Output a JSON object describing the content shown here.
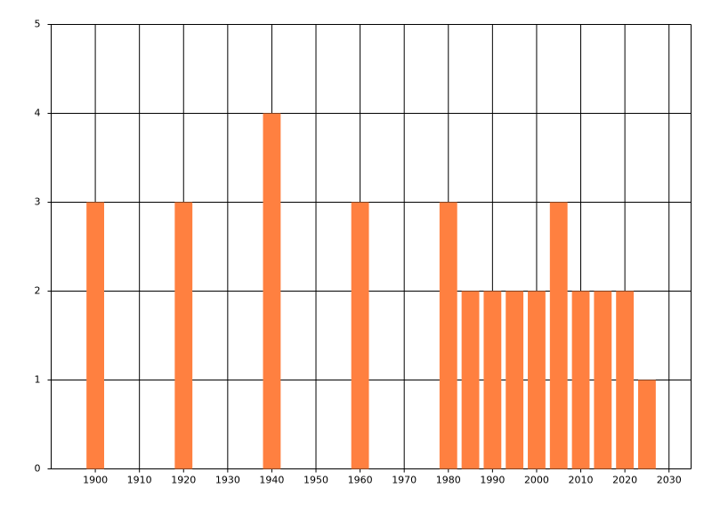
{
  "chart_data": {
    "type": "bar",
    "x": [
      1900,
      1920,
      1940,
      1960,
      1980,
      1985,
      1990,
      1995,
      2000,
      2005,
      2010,
      2015,
      2020,
      2025
    ],
    "values": [
      3,
      3,
      4,
      3,
      3,
      2,
      2,
      2,
      2,
      3,
      2,
      2,
      2,
      1
    ],
    "color": "#ff8040",
    "xlim": [
      1890,
      2035
    ],
    "xticks": [
      1900,
      1910,
      1920,
      1930,
      1940,
      1950,
      1960,
      1970,
      1980,
      1990,
      2000,
      2010,
      2020,
      2030
    ],
    "ylim": [
      0,
      5
    ],
    "yticks": [
      0,
      1,
      2,
      3,
      4,
      5
    ],
    "grid": true
  }
}
